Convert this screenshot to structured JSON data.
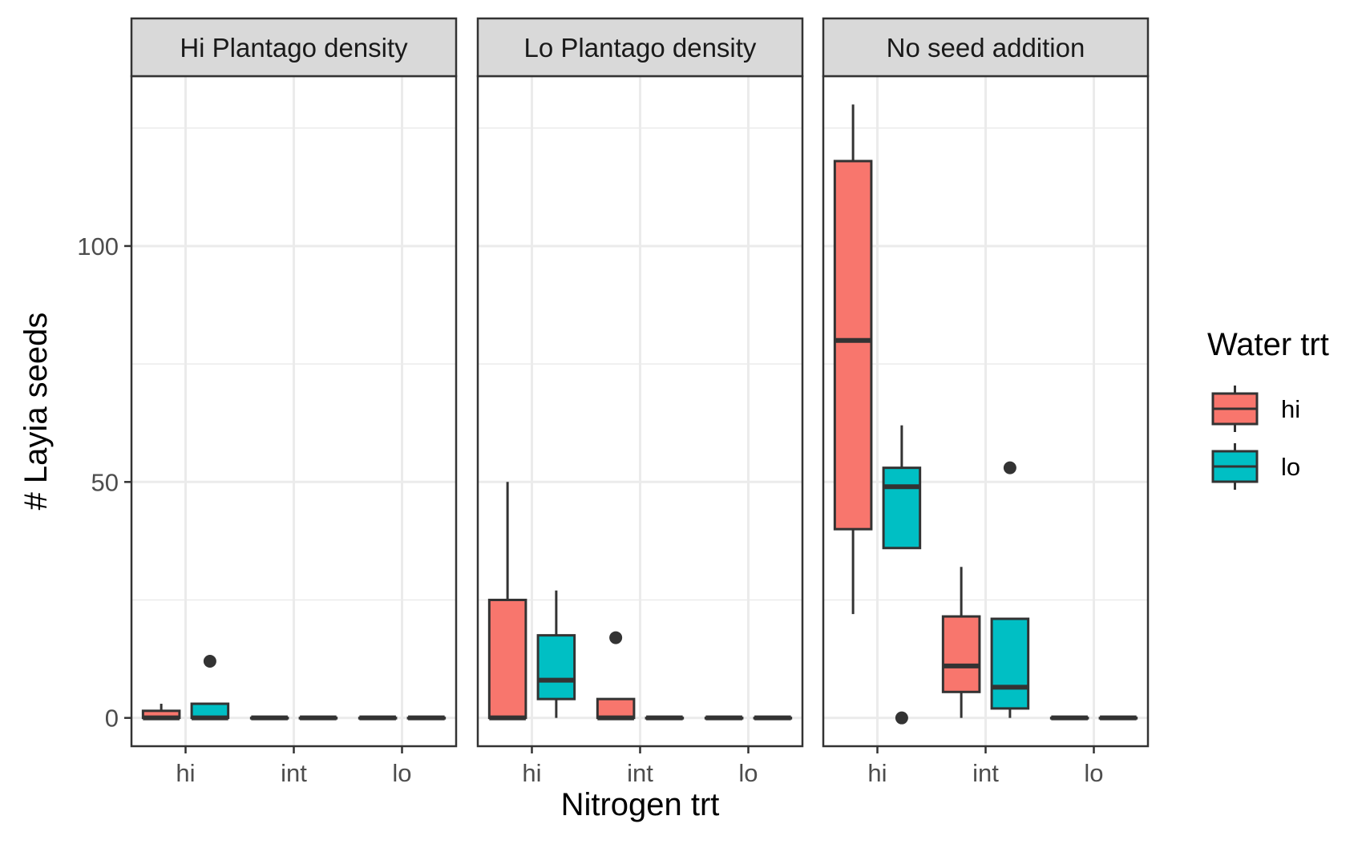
{
  "chart_data": {
    "type": "boxplot",
    "xlabel": "Nitrogen trt",
    "ylabel": "# Layia seeds",
    "ylim": [
      -6,
      136
    ],
    "y_ticks": [
      0,
      50,
      100
    ],
    "grid": true,
    "categories": [
      "hi",
      "int",
      "lo"
    ],
    "legend": {
      "title": "Water trt",
      "position": "right",
      "entries": [
        {
          "name": "hi",
          "color": "#F8766D"
        },
        {
          "name": "lo",
          "color": "#00BFC4"
        }
      ]
    },
    "panels": [
      {
        "title": "Hi Plantago density",
        "boxes": [
          {
            "nitrogen": "hi",
            "water": "hi",
            "whisker_low": 0,
            "q1": 0,
            "median": 0,
            "q3": 1.5,
            "whisker_high": 3,
            "outliers": []
          },
          {
            "nitrogen": "hi",
            "water": "lo",
            "whisker_low": 0,
            "q1": 0,
            "median": 0,
            "q3": 3,
            "whisker_high": 3,
            "outliers": [
              12
            ]
          },
          {
            "nitrogen": "int",
            "water": "hi",
            "whisker_low": 0,
            "q1": 0,
            "median": 0,
            "q3": 0,
            "whisker_high": 0,
            "outliers": []
          },
          {
            "nitrogen": "int",
            "water": "lo",
            "whisker_low": 0,
            "q1": 0,
            "median": 0,
            "q3": 0,
            "whisker_high": 0,
            "outliers": []
          },
          {
            "nitrogen": "lo",
            "water": "hi",
            "whisker_low": 0,
            "q1": 0,
            "median": 0,
            "q3": 0,
            "whisker_high": 0,
            "outliers": []
          },
          {
            "nitrogen": "lo",
            "water": "lo",
            "whisker_low": 0,
            "q1": 0,
            "median": 0,
            "q3": 0,
            "whisker_high": 0,
            "outliers": []
          }
        ]
      },
      {
        "title": "Lo Plantago density",
        "boxes": [
          {
            "nitrogen": "hi",
            "water": "hi",
            "whisker_low": 0,
            "q1": 0,
            "median": 0,
            "q3": 25,
            "whisker_high": 50,
            "outliers": []
          },
          {
            "nitrogen": "hi",
            "water": "lo",
            "whisker_low": 0,
            "q1": 4,
            "median": 8,
            "q3": 17.5,
            "whisker_high": 27,
            "outliers": []
          },
          {
            "nitrogen": "int",
            "water": "hi",
            "whisker_low": 0,
            "q1": 0,
            "median": 0,
            "q3": 4,
            "whisker_high": 4,
            "outliers": [
              17
            ]
          },
          {
            "nitrogen": "int",
            "water": "lo",
            "whisker_low": 0,
            "q1": 0,
            "median": 0,
            "q3": 0,
            "whisker_high": 0,
            "outliers": []
          },
          {
            "nitrogen": "lo",
            "water": "hi",
            "whisker_low": 0,
            "q1": 0,
            "median": 0,
            "q3": 0,
            "whisker_high": 0,
            "outliers": []
          },
          {
            "nitrogen": "lo",
            "water": "lo",
            "whisker_low": 0,
            "q1": 0,
            "median": 0,
            "q3": 0,
            "whisker_high": 0,
            "outliers": []
          }
        ]
      },
      {
        "title": "No seed addition",
        "boxes": [
          {
            "nitrogen": "hi",
            "water": "hi",
            "whisker_low": 22,
            "q1": 40,
            "median": 80,
            "q3": 118,
            "whisker_high": 130,
            "outliers": []
          },
          {
            "nitrogen": "hi",
            "water": "lo",
            "whisker_low": 36,
            "q1": 36,
            "median": 49,
            "q3": 53,
            "whisker_high": 62,
            "outliers": [
              0
            ]
          },
          {
            "nitrogen": "int",
            "water": "hi",
            "whisker_low": 0,
            "q1": 5.5,
            "median": 11,
            "q3": 21.5,
            "whisker_high": 32,
            "outliers": []
          },
          {
            "nitrogen": "int",
            "water": "lo",
            "whisker_low": 0,
            "q1": 2,
            "median": 6.5,
            "q3": 21,
            "whisker_high": 21,
            "outliers": [
              53
            ]
          },
          {
            "nitrogen": "lo",
            "water": "hi",
            "whisker_low": 0,
            "q1": 0,
            "median": 0,
            "q3": 0,
            "whisker_high": 0,
            "outliers": []
          },
          {
            "nitrogen": "lo",
            "water": "lo",
            "whisker_low": 0,
            "q1": 0,
            "median": 0,
            "q3": 0,
            "whisker_high": 0,
            "outliers": []
          }
        ]
      }
    ]
  }
}
